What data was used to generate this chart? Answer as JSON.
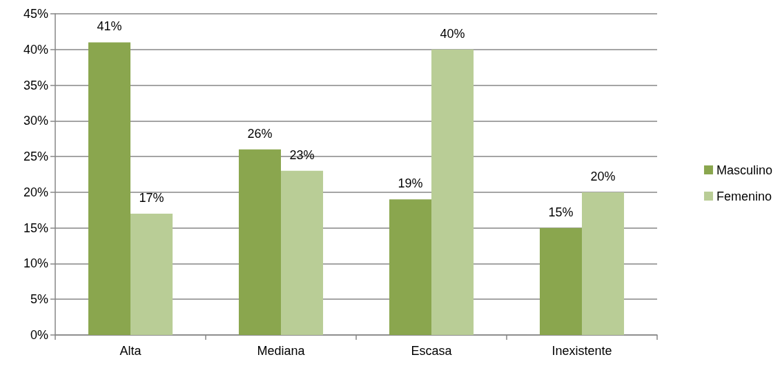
{
  "chart_data": {
    "type": "bar",
    "categories": [
      "Alta",
      "Mediana",
      "Escasa",
      "Inexistente"
    ],
    "series": [
      {
        "name": "Masculino",
        "color": "#8aa64e",
        "values": [
          41,
          26,
          19,
          15
        ],
        "value_labels": [
          "41%",
          "26%",
          "19%",
          "15%"
        ]
      },
      {
        "name": "Femenino",
        "color": "#b9cd96",
        "values": [
          17,
          23,
          40,
          20
        ],
        "value_labels": [
          "17%",
          "23%",
          "40%",
          "20%"
        ]
      }
    ],
    "ylim": [
      0,
      45
    ],
    "yticks": [
      {
        "value": 0,
        "label": "0%"
      },
      {
        "value": 5,
        "label": "5%"
      },
      {
        "value": 10,
        "label": "10%"
      },
      {
        "value": 15,
        "label": "15%"
      },
      {
        "value": 20,
        "label": "20%"
      },
      {
        "value": 25,
        "label": "25%"
      },
      {
        "value": 30,
        "label": "30%"
      },
      {
        "value": 35,
        "label": "35%"
      },
      {
        "value": 40,
        "label": "40%"
      },
      {
        "value": 45,
        "label": "45%"
      }
    ],
    "grid": "y",
    "legend": "right"
  }
}
